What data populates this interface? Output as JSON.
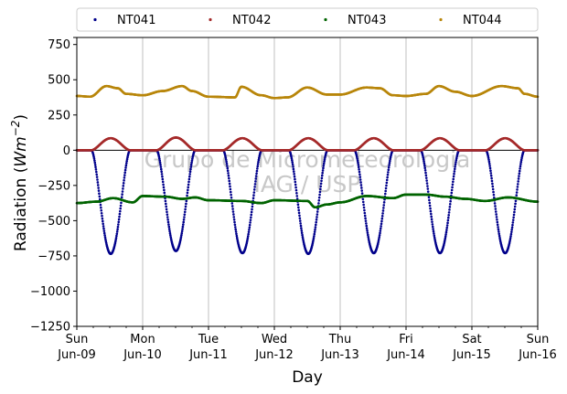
{
  "chart_data": {
    "type": "scatter",
    "xlabel": "Day",
    "ylabel_text": "Radiation (",
    "ylabel_unit_main": "Wm",
    "ylabel_unit_exp": "−2",
    "ylabel_close": ")",
    "ylim": [
      -1250,
      800
    ],
    "yticks": [
      800,
      750,
      500,
      250,
      0,
      -250,
      -500,
      -750,
      -1000,
      -1250
    ],
    "ytick_labels": [
      "",
      "750",
      "500",
      "250",
      "0",
      "−250",
      "−500",
      "−750",
      "−1000",
      "−1250"
    ],
    "xlim_days": [
      0,
      7
    ],
    "x_ticks": [
      {
        "day": "Sun",
        "date": "Jun-09"
      },
      {
        "day": "Mon",
        "date": "Jun-10"
      },
      {
        "day": "Tue",
        "date": "Jun-11"
      },
      {
        "day": "Wed",
        "date": "Jun-12"
      },
      {
        "day": "Thu",
        "date": "Jun-13"
      },
      {
        "day": "Fri",
        "date": "Jun-14"
      },
      {
        "day": "Sat",
        "date": "Jun-15"
      },
      {
        "day": "Sun",
        "date": "Jun-16"
      }
    ],
    "grid": "vertical",
    "zero_line": true,
    "legend_position": "top",
    "watermark": [
      "Grupo de Micrometeorologia",
      "IAG / USP"
    ],
    "series": [
      {
        "name": "NT041",
        "color": "#00008b",
        "baseline": 0,
        "daily_extreme": [
          -735,
          -715,
          -730,
          -735,
          -730,
          -730,
          -730
        ],
        "peak_day_fraction": [
          0.515,
          0.505,
          0.515,
          0.515,
          0.51,
          0.515,
          0.505
        ]
      },
      {
        "name": "NT042",
        "color": "#a52a2a",
        "baseline": 0,
        "daily_extreme": [
          85,
          90,
          85,
          85,
          85,
          85,
          85
        ],
        "peak_day_fraction": [
          0.515,
          0.505,
          0.515,
          0.515,
          0.51,
          0.515,
          0.505
        ]
      },
      {
        "name": "NT043",
        "color": "#006400",
        "daily_points": [
          {
            "x": 0.0,
            "y": -375
          },
          {
            "x": 0.3,
            "y": -365
          },
          {
            "x": 0.55,
            "y": -340
          },
          {
            "x": 0.85,
            "y": -370
          },
          {
            "x": 1.0,
            "y": -325
          },
          {
            "x": 1.35,
            "y": -330
          },
          {
            "x": 1.6,
            "y": -345
          },
          {
            "x": 1.8,
            "y": -335
          },
          {
            "x": 2.0,
            "y": -355
          },
          {
            "x": 2.5,
            "y": -360
          },
          {
            "x": 2.8,
            "y": -375
          },
          {
            "x": 3.0,
            "y": -355
          },
          {
            "x": 3.5,
            "y": -360
          },
          {
            "x": 3.62,
            "y": -405
          },
          {
            "x": 3.8,
            "y": -385
          },
          {
            "x": 4.0,
            "y": -370
          },
          {
            "x": 4.4,
            "y": -325
          },
          {
            "x": 4.8,
            "y": -340
          },
          {
            "x": 5.0,
            "y": -315
          },
          {
            "x": 5.3,
            "y": -315
          },
          {
            "x": 5.6,
            "y": -330
          },
          {
            "x": 5.9,
            "y": -345
          },
          {
            "x": 6.2,
            "y": -360
          },
          {
            "x": 6.55,
            "y": -335
          },
          {
            "x": 7.0,
            "y": -365
          }
        ]
      },
      {
        "name": "NT044",
        "color": "#b8860b",
        "daily_points": [
          {
            "x": 0.0,
            "y": 385
          },
          {
            "x": 0.2,
            "y": 380
          },
          {
            "x": 0.45,
            "y": 455
          },
          {
            "x": 0.62,
            "y": 440
          },
          {
            "x": 0.75,
            "y": 400
          },
          {
            "x": 1.0,
            "y": 390
          },
          {
            "x": 1.3,
            "y": 420
          },
          {
            "x": 1.6,
            "y": 455
          },
          {
            "x": 1.75,
            "y": 420
          },
          {
            "x": 2.0,
            "y": 380
          },
          {
            "x": 2.4,
            "y": 375
          },
          {
            "x": 2.5,
            "y": 450
          },
          {
            "x": 2.8,
            "y": 390
          },
          {
            "x": 3.0,
            "y": 370
          },
          {
            "x": 3.2,
            "y": 375
          },
          {
            "x": 3.5,
            "y": 445
          },
          {
            "x": 3.8,
            "y": 395
          },
          {
            "x": 4.0,
            "y": 395
          },
          {
            "x": 4.4,
            "y": 445
          },
          {
            "x": 4.6,
            "y": 440
          },
          {
            "x": 4.8,
            "y": 390
          },
          {
            "x": 5.0,
            "y": 385
          },
          {
            "x": 5.3,
            "y": 400
          },
          {
            "x": 5.5,
            "y": 455
          },
          {
            "x": 5.75,
            "y": 415
          },
          {
            "x": 6.0,
            "y": 385
          },
          {
            "x": 6.45,
            "y": 455
          },
          {
            "x": 6.7,
            "y": 440
          },
          {
            "x": 6.8,
            "y": 400
          },
          {
            "x": 7.0,
            "y": 380
          }
        ]
      }
    ]
  }
}
